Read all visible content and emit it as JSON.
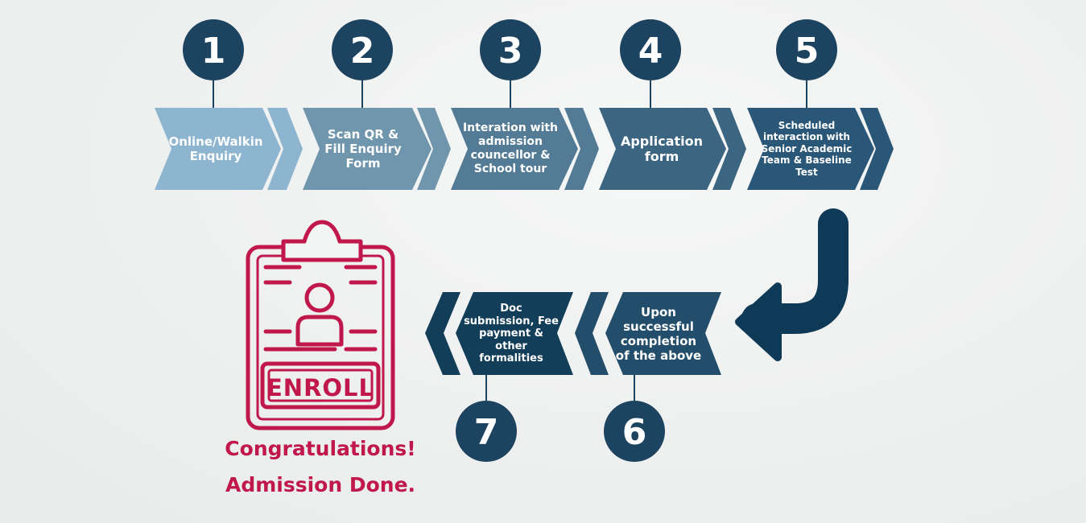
{
  "steps": [
    {
      "number": "1",
      "label": "Online/Walkin Enquiry",
      "color": "#8db5cf"
    },
    {
      "number": "2",
      "label": "Scan QR & Fill Enquiry Form",
      "color": "#6f96ad"
    },
    {
      "number": "3",
      "label": "Interation with admission councellor & School tour",
      "color": "#537b96"
    },
    {
      "number": "4",
      "label": "Application form",
      "color": "#3c6582"
    },
    {
      "number": "5",
      "label": "Scheduled interaction with Senior Academic Team & Baseline Test",
      "color": "#2a5777"
    },
    {
      "number": "6",
      "label": "Upon successful completion of the above",
      "color": "#234e6b"
    },
    {
      "number": "7",
      "label": "Doc submission, Fee payment & other formalities",
      "color": "#123e5a"
    }
  ],
  "enroll_label": "ENROLL",
  "congrats": {
    "line1": "Congratulations!",
    "line2": "Admission Done."
  },
  "colors": {
    "circle": "#1c4460",
    "arrow": "#0f3a57",
    "accent": "#c0174c"
  },
  "icons": [
    "clipboard-enroll-icon",
    "turn-arrow-icon"
  ]
}
